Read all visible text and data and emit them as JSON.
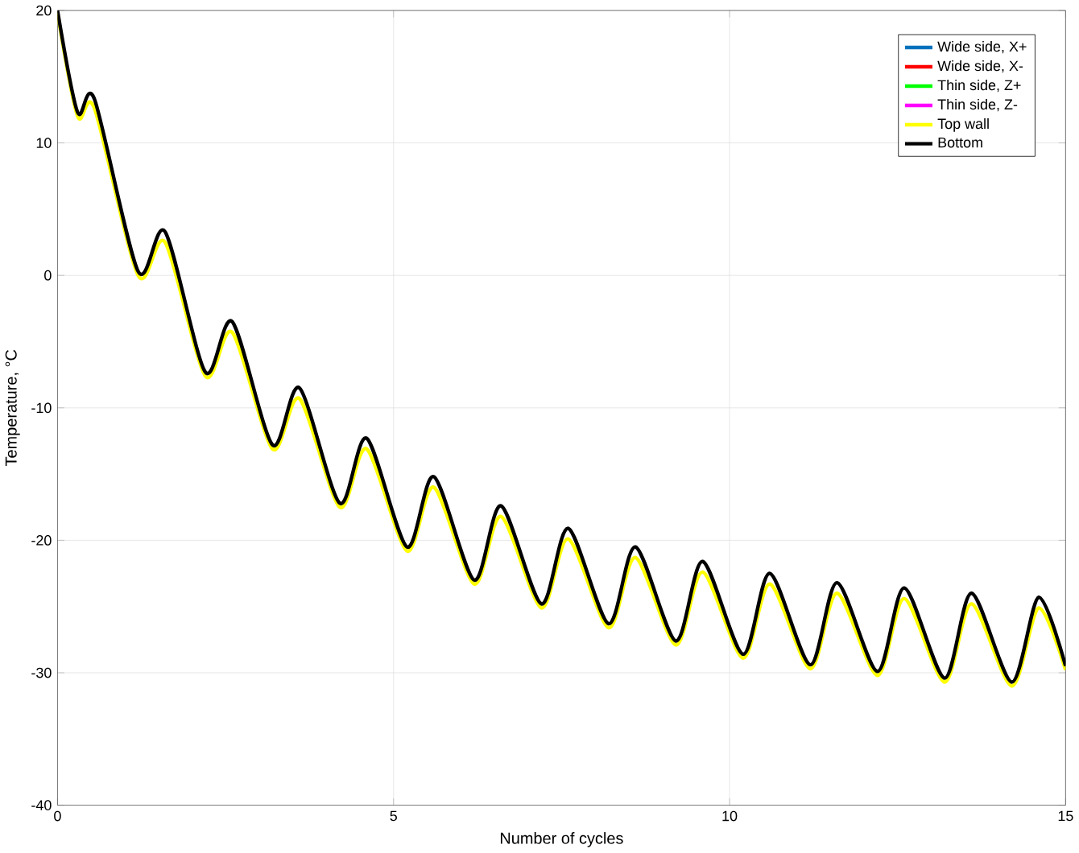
{
  "chart_data": {
    "type": "line",
    "xlabel": "Number of cycles",
    "ylabel": "Temperature, °C",
    "x": [
      0,
      0.3,
      0.55,
      1.2,
      1.6,
      2.2,
      2.6,
      3.2,
      3.6,
      4.2,
      4.6,
      5.2,
      5.6,
      6.2,
      6.6,
      7.2,
      7.6,
      8.2,
      8.6,
      9.2,
      9.6,
      10.2,
      10.6,
      11.2,
      11.6,
      12.2,
      12.6,
      13.2,
      13.6,
      14.2,
      14.6,
      15
    ],
    "series": [
      {
        "name": "Wide side, X+",
        "color": "#0072bd",
        "values": [
          null,
          null,
          null,
          null,
          null,
          null,
          null,
          null,
          null,
          null,
          null,
          null,
          null,
          null,
          null,
          null,
          null,
          null,
          null,
          null,
          null,
          null,
          null,
          null,
          null,
          null,
          null,
          null,
          null,
          null,
          null,
          null
        ]
      },
      {
        "name": "Wide side, X-",
        "color": "#ff0000",
        "values": [
          null,
          null,
          null,
          null,
          null,
          null,
          null,
          null,
          null,
          null,
          null,
          null,
          null,
          null,
          null,
          null,
          null,
          null,
          null,
          null,
          null,
          null,
          null,
          null,
          null,
          null,
          null,
          null,
          null,
          null,
          null,
          null
        ]
      },
      {
        "name": "Thin side, Z+",
        "color": "#00ff00",
        "values": [
          null,
          null,
          null,
          null,
          null,
          null,
          null,
          null,
          null,
          null,
          null,
          null,
          null,
          null,
          null,
          null,
          null,
          null,
          null,
          null,
          null,
          null,
          null,
          null,
          null,
          null,
          null,
          null,
          null,
          null,
          null,
          null
        ]
      },
      {
        "name": "Thin side, Z-",
        "color": "#ff00ff",
        "values": [
          null,
          null,
          null,
          null,
          null,
          null,
          null,
          null,
          null,
          null,
          null,
          null,
          null,
          null,
          null,
          null,
          null,
          null,
          null,
          null,
          null,
          null,
          null,
          null,
          null,
          null,
          null,
          null,
          null,
          null,
          null,
          null
        ]
      },
      {
        "name": "Top wall",
        "color": "#ffff00",
        "values": [
          19.8,
          12,
          12.6,
          0,
          2.5,
          -7.6,
          -4.3,
          -13.1,
          -9.3,
          -17.5,
          -13.1,
          -20.8,
          -16,
          -23.3,
          -18.2,
          -25.1,
          -19.9,
          -26.6,
          -21.3,
          -27.9,
          -22.4,
          -28.9,
          -23.3,
          -29.7,
          -24,
          -30.2,
          -24.4,
          -30.7,
          -24.8,
          -31,
          -25.1,
          -29.8
        ]
      },
      {
        "name": "Bottom",
        "color": "#000000",
        "values": [
          20,
          12.3,
          13.3,
          0.3,
          3.3,
          -7.3,
          -3.5,
          -12.8,
          -8.5,
          -17.2,
          -12.3,
          -20.5,
          -15.2,
          -23,
          -17.4,
          -24.8,
          -19.1,
          -26.3,
          -20.5,
          -27.6,
          -21.6,
          -28.6,
          -22.5,
          -29.4,
          -23.2,
          -29.9,
          -23.6,
          -30.4,
          -24,
          -30.7,
          -24.3,
          -29.5
        ]
      }
    ],
    "xlim": [
      0,
      15
    ],
    "ylim": [
      -40,
      20
    ],
    "xticks": [
      0,
      5,
      10,
      15
    ],
    "yticks": [
      -40,
      -30,
      -20,
      -10,
      0,
      10,
      20
    ],
    "grid": true,
    "legend": "top right",
    "marker": "none",
    "line_style": "solid"
  }
}
